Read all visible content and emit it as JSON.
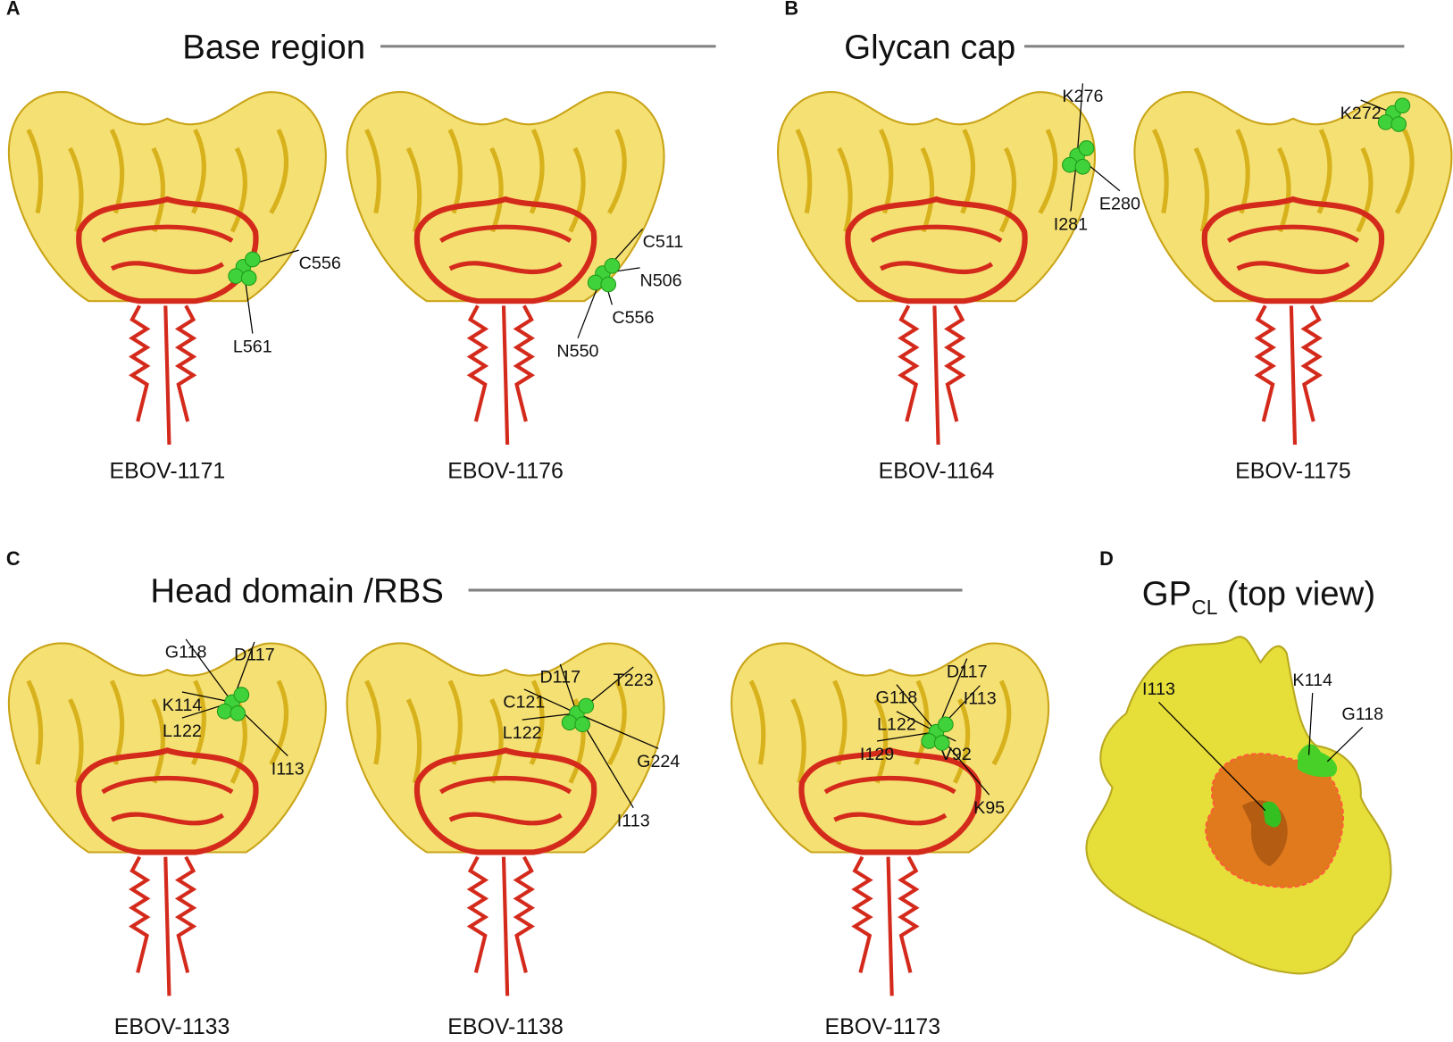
{
  "panels": [
    {
      "letter": "A",
      "title": "Base region",
      "structures": [
        {
          "name": "EBOV-1171",
          "labels": [
            "C556",
            "L561"
          ]
        },
        {
          "name": "EBOV-1176",
          "labels": [
            "C511",
            "N506",
            "C556",
            "N550"
          ]
        }
      ]
    },
    {
      "letter": "B",
      "title": "Glycan cap",
      "structures": [
        {
          "name": "EBOV-1164",
          "labels": [
            "K276",
            "E280",
            "I281"
          ]
        },
        {
          "name": "EBOV-1175",
          "labels": [
            "K272"
          ]
        }
      ]
    },
    {
      "letter": "C",
      "title": "Head domain /RBS",
      "structures": [
        {
          "name": "EBOV-1133",
          "labels": [
            "G118",
            "D117",
            "K114",
            "L122",
            "I113"
          ]
        },
        {
          "name": "EBOV-1138",
          "labels": [
            "D117",
            "T223",
            "C121",
            "L122",
            "G224",
            "I113"
          ]
        },
        {
          "name": "EBOV-1173",
          "labels": [
            "D117",
            "G118",
            "I113",
            "L122",
            "I129",
            "V92",
            "K95"
          ]
        }
      ]
    },
    {
      "letter": "D",
      "title": "GP",
      "title_subscript": "CL",
      "title_rest": "(top view)",
      "labels": [
        "I113",
        "K114",
        "G118"
      ]
    }
  ]
}
